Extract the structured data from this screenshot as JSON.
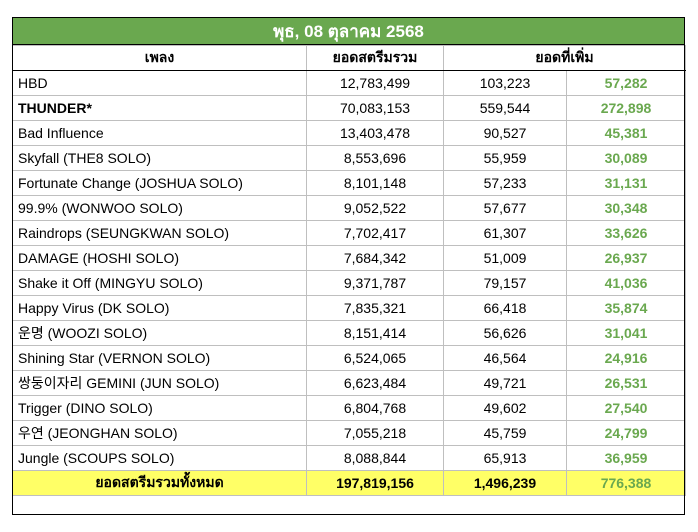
{
  "title": "พุธ, 08 ตุลาคม 2568",
  "headers": {
    "song": "เพลง",
    "total_streams": "ยอดสตรีมรวม",
    "increase": "ยอดที่เพิ่ม"
  },
  "colors": {
    "title_bg": "#6aa84f",
    "gain_text": "#6aa84f",
    "total_row_bg": "#ffff66"
  },
  "rows": [
    {
      "song": "HBD",
      "total": "12,783,499",
      "daily": "103,223",
      "gain": "57,282",
      "bold": false
    },
    {
      "song": "THUNDER*",
      "total": "70,083,153",
      "daily": "559,544",
      "gain": "272,898",
      "bold": true
    },
    {
      "song": "Bad Influence",
      "total": "13,403,478",
      "daily": "90,527",
      "gain": "45,381",
      "bold": false
    },
    {
      "song": "Skyfall (THE8 SOLO)",
      "total": "8,553,696",
      "daily": "55,959",
      "gain": "30,089",
      "bold": false
    },
    {
      "song": "Fortunate Change (JOSHUA SOLO)",
      "total": "8,101,148",
      "daily": "57,233",
      "gain": "31,131",
      "bold": false
    },
    {
      "song": "99.9% (WONWOO SOLO)",
      "total": "9,052,522",
      "daily": "57,677",
      "gain": "30,348",
      "bold": false
    },
    {
      "song": "Raindrops (SEUNGKWAN SOLO)",
      "total": "7,702,417",
      "daily": "61,307",
      "gain": "33,626",
      "bold": false
    },
    {
      "song": "DAMAGE (HOSHI SOLO)",
      "total": "7,684,342",
      "daily": "51,009",
      "gain": "26,937",
      "bold": false
    },
    {
      "song": "Shake it Off (MINGYU SOLO)",
      "total": "9,371,787",
      "daily": "79,157",
      "gain": "41,036",
      "bold": false
    },
    {
      "song": "Happy Virus (DK SOLO)",
      "total": "7,835,321",
      "daily": "66,418",
      "gain": "35,874",
      "bold": false
    },
    {
      "song": "운명 (WOOZI SOLO)",
      "total": "8,151,414",
      "daily": "56,626",
      "gain": "31,041",
      "bold": false
    },
    {
      "song": "Shining Star (VERNON SOLO)",
      "total": "6,524,065",
      "daily": "46,564",
      "gain": "24,916",
      "bold": false
    },
    {
      "song": "쌍둥이자리 GEMINI (JUN SOLO)",
      "total": "6,623,484",
      "daily": "49,721",
      "gain": "26,531",
      "bold": false
    },
    {
      "song": "Trigger (DINO SOLO)",
      "total": "6,804,768",
      "daily": "49,602",
      "gain": "27,540",
      "bold": false
    },
    {
      "song": "우연 (JEONGHAN SOLO)",
      "total": "7,055,218",
      "daily": "45,759",
      "gain": "24,799",
      "bold": false
    },
    {
      "song": "Jungle (SCOUPS SOLO)",
      "total": "8,088,844",
      "daily": "65,913",
      "gain": "36,959",
      "bold": false
    }
  ],
  "totals": {
    "label": "ยอดสตรีมรวมทั้งหมด",
    "total": "197,819,156",
    "daily": "1,496,239",
    "gain": "776,388"
  }
}
